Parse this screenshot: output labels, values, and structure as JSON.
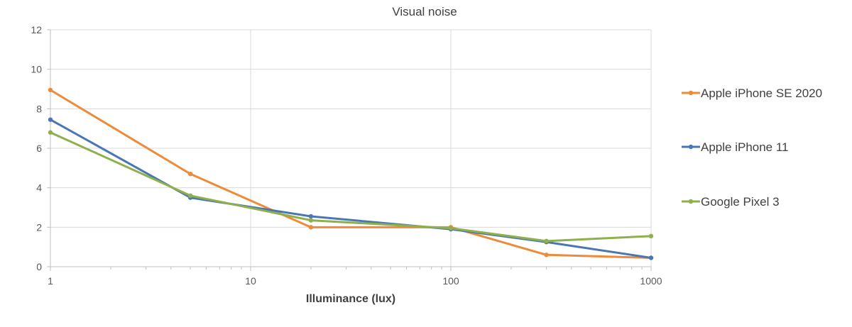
{
  "chart_data": {
    "type": "line",
    "title": "Visual noise",
    "xlabel": "Illuminance (lux)",
    "ylabel": "",
    "x_scale": "log",
    "xlim": [
      1,
      1000
    ],
    "ylim": [
      0,
      12
    ],
    "x_ticks": [
      1,
      10,
      100,
      1000
    ],
    "y_ticks": [
      0,
      2,
      4,
      6,
      8,
      10,
      12
    ],
    "grid": true,
    "legend_position": "right",
    "series": [
      {
        "name": "Apple iPhone SE 2020",
        "color": "#ED8B3A",
        "x": [
          1,
          5,
          20,
          100,
          300,
          1000
        ],
        "y": [
          8.95,
          4.7,
          2.0,
          2.0,
          0.6,
          0.45
        ]
      },
      {
        "name": "Apple iPhone 11",
        "color": "#4A76B3",
        "x": [
          1,
          5,
          20,
          100,
          300,
          1000
        ],
        "y": [
          7.45,
          3.5,
          2.55,
          1.9,
          1.25,
          0.45
        ]
      },
      {
        "name": "Google Pixel 3",
        "color": "#8DB04C",
        "x": [
          1,
          5,
          20,
          100,
          300,
          1000
        ],
        "y": [
          6.8,
          3.6,
          2.35,
          1.95,
          1.3,
          1.55
        ]
      }
    ]
  }
}
